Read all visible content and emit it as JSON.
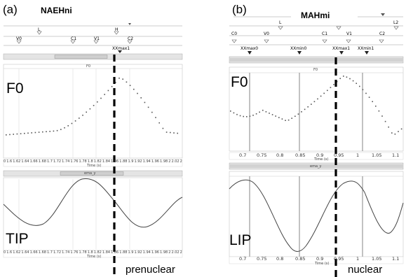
{
  "panel_a": {
    "tag": "(a)",
    "title": "NAEHni",
    "tier_landmarks": [
      "L",
      "H",
      "V0",
      "C1",
      "V1",
      "C2"
    ],
    "event_label": "XXmax1",
    "f0_label": "F0",
    "f0_header": "F0",
    "ema_header": "ema_y",
    "artic_label": "TIP",
    "time_label": "Time (s)",
    "x_ticks_top": [
      "0",
      "1.6",
      "1.62",
      "1.64",
      "1.66",
      "1.68",
      "1.7",
      "1.72",
      "1.74",
      "1.76",
      "1.78",
      "1.8",
      "1.82",
      "1.84",
      "1.86",
      "1.88",
      "1.9",
      "1.92",
      "1.94",
      "1.96",
      "1.98",
      "2",
      "2.02",
      "2"
    ],
    "x_ticks_bottom": [
      "0",
      "1.6",
      "1.62",
      "1.64",
      "1.66",
      "1.68",
      "1.7",
      "1.72",
      "1.74",
      "1.76",
      "1.78",
      "1.8",
      "1.82",
      "1.84",
      "1.86",
      "1.88",
      "1.9",
      "1.92",
      "1.94",
      "1.96",
      "1.98",
      "2",
      "2.02",
      "2"
    ],
    "caption": "prenuclear"
  },
  "panel_b": {
    "tag": "(b)",
    "title": "MAHmi",
    "tier_landmarks": [
      "L",
      "L2",
      "C0",
      "V0",
      "C1",
      "V1",
      "C2"
    ],
    "event_labels": [
      "XXmax0",
      "XXmin0",
      "XXmax1",
      "XXmin1"
    ],
    "f0_label": "F0",
    "f0_header": "F0",
    "ema_header": "ema_y",
    "artic_label": "LIP",
    "time_label": "Time (s)",
    "x_ticks_top": [
      "0.7",
      "0.75",
      "0.8",
      "0.85",
      "0.9",
      "0.95",
      "1",
      "1.05",
      "1.1"
    ],
    "x_ticks_bottom": [
      "0.7",
      "0.75",
      "0.8",
      "0.85",
      "0.9",
      "0.95",
      "1",
      "1.05",
      "1.1"
    ],
    "caption": "nuclear"
  },
  "colors": {
    "ink": "#000000",
    "grid": "#bbbbbb",
    "bar": "#d8d8d8",
    "trace": "#333333"
  }
}
